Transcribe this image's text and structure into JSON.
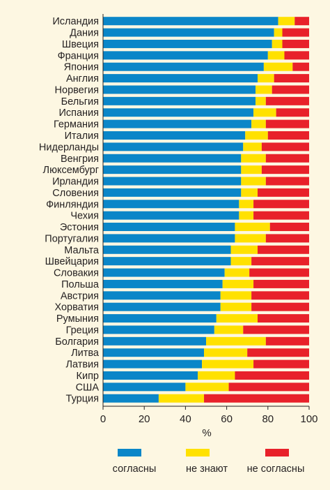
{
  "chart_data": {
    "type": "bar",
    "orientation": "horizontal",
    "stacked": true,
    "categories": [
      "Исландия",
      "Дания",
      "Швеция",
      "Франция",
      "Япония",
      "Англия",
      "Норвегия",
      "Бельгия",
      "Испания",
      "Германия",
      "Италия",
      "Нидерланды",
      "Венгрия",
      "Люксембург",
      "Ирландия",
      "Словения",
      "Финляндия",
      "Чехия",
      "Эстония",
      "Португалия",
      "Мальта",
      "Швейцария",
      "Словакия",
      "Польша",
      "Австрия",
      "Хорватия",
      "Румыния",
      "Греция",
      "Болгария",
      "Литва",
      "Латвия",
      "Кипр",
      "США",
      "Турция"
    ],
    "series": [
      {
        "name": "согласны",
        "color": "#0A86C8",
        "values": [
          85,
          83,
          82,
          80,
          78,
          75,
          74,
          74,
          73,
          72,
          69,
          68,
          67,
          67,
          67,
          67,
          66,
          66,
          64,
          64,
          62,
          62,
          59,
          58,
          57,
          57,
          55,
          54,
          50,
          49,
          48,
          46,
          40,
          27
        ]
      },
      {
        "name": "не знают",
        "color": "#FFE100",
        "values": [
          8,
          4,
          5,
          8,
          14,
          8,
          8,
          5,
          11,
          7,
          11,
          9,
          12,
          10,
          12,
          8,
          7,
          7,
          17,
          15,
          13,
          10,
          12,
          15,
          15,
          15,
          20,
          14,
          29,
          21,
          25,
          18,
          21,
          22
        ]
      },
      {
        "name": "не согласны",
        "color": "#E8212A",
        "values": [
          7,
          13,
          13,
          12,
          8,
          17,
          18,
          21,
          16,
          21,
          20,
          23,
          21,
          23,
          21,
          25,
          27,
          27,
          19,
          21,
          25,
          28,
          29,
          27,
          28,
          28,
          25,
          32,
          21,
          30,
          27,
          36,
          39,
          51
        ]
      }
    ],
    "xlabel": "%",
    "xlim": [
      0,
      100
    ],
    "xticks": [
      "0",
      "20",
      "40",
      "60",
      "80",
      "100"
    ],
    "legend_position": "bottom",
    "grid": false
  }
}
